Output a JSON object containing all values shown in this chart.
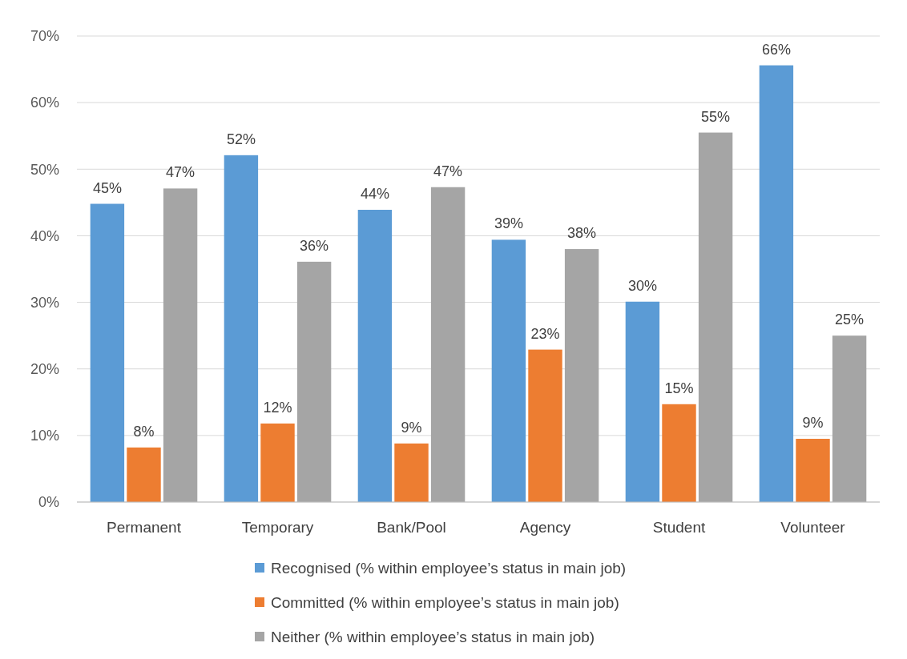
{
  "chart_data": {
    "type": "bar",
    "categories": [
      "Permanent",
      "Temporary",
      "Bank/Pool",
      "Agency",
      "Student",
      "Volunteer"
    ],
    "series": [
      {
        "name": "Recognised (% within employee’s status in main job)",
        "color": "#5b9bd5",
        "values": [
          44.8,
          52.1,
          43.9,
          39.4,
          30.1,
          65.6
        ],
        "value_labels": [
          "45%",
          "52%",
          "44%",
          "39%",
          "30%",
          "66%"
        ]
      },
      {
        "name": "Committed (% within employee’s status in main job)",
        "color": "#ed7d31",
        "values": [
          8.2,
          11.8,
          8.8,
          22.9,
          14.7,
          9.5
        ],
        "value_labels": [
          "8%",
          "12%",
          "9%",
          "23%",
          "15%",
          "9%"
        ]
      },
      {
        "name": "Neither (% within employee’s status in main job)",
        "color": "#a5a5a5",
        "values": [
          47.1,
          36.1,
          47.3,
          38.0,
          55.5,
          25.0
        ],
        "value_labels": [
          "47%",
          "36%",
          "47%",
          "38%",
          "55%",
          "25%"
        ]
      }
    ],
    "ylim": [
      0,
      70
    ],
    "yticks": [
      {
        "value": 0,
        "label": "0%"
      },
      {
        "value": 10,
        "label": "10%"
      },
      {
        "value": 20,
        "label": "20%"
      },
      {
        "value": 30,
        "label": "30%"
      },
      {
        "value": 40,
        "label": "40%"
      },
      {
        "value": 50,
        "label": "50%"
      },
      {
        "value": 60,
        "label": "60%"
      },
      {
        "value": 70,
        "label": "70%"
      }
    ],
    "grid": "y",
    "legend": "bottom"
  }
}
